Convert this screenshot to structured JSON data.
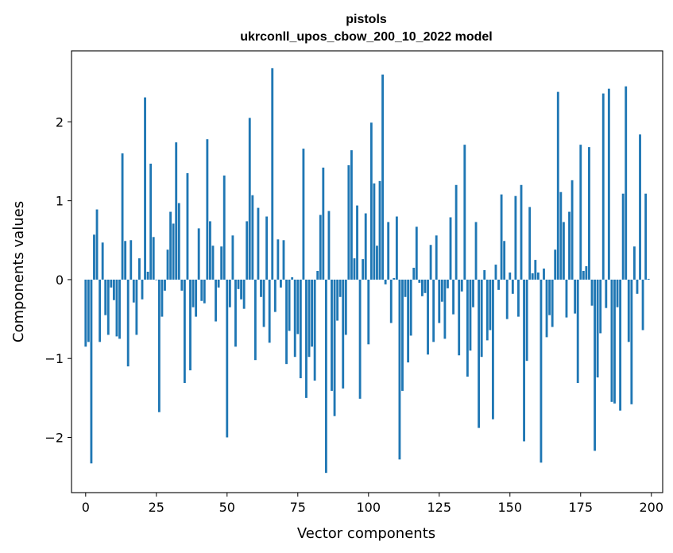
{
  "chart_data": {
    "type": "bar",
    "title": "pistols",
    "subtitle": "ukrconll_upos_cbow_200_10_2022 model",
    "xlabel": "Vector components",
    "ylabel": "Components values",
    "xlim": [
      -5,
      204
    ],
    "ylim": [
      -2.7,
      2.9
    ],
    "xticks": [
      0,
      25,
      50,
      75,
      100,
      125,
      150,
      175,
      200
    ],
    "yticks": [
      -2,
      -1,
      0,
      1,
      2
    ],
    "ytick_labels": [
      "−2",
      "−1",
      "0",
      "1",
      "2"
    ],
    "grid": false,
    "bar_color": "#1f77b4",
    "values": [
      -0.85,
      -0.79,
      -2.33,
      0.57,
      0.89,
      -0.79,
      0.47,
      -0.45,
      -0.7,
      -0.1,
      -0.26,
      -0.72,
      -0.75,
      1.6,
      0.49,
      -1.1,
      0.5,
      -0.29,
      -0.7,
      0.27,
      -0.25,
      2.31,
      0.1,
      1.47,
      0.54,
      0.0,
      -1.68,
      -0.47,
      -0.14,
      0.38,
      0.86,
      0.71,
      1.74,
      0.97,
      -0.14,
      -1.31,
      1.35,
      -1.15,
      -0.35,
      -0.47,
      0.65,
      -0.27,
      -0.3,
      1.78,
      0.74,
      0.43,
      -0.53,
      -0.1,
      0.42,
      1.32,
      -2.0,
      -0.35,
      0.56,
      -0.85,
      -0.12,
      -0.25,
      -0.37,
      0.74,
      2.05,
      1.07,
      -1.02,
      0.91,
      -0.22,
      -0.6,
      0.8,
      -0.8,
      2.68,
      -0.41,
      0.51,
      -0.1,
      0.5,
      -1.07,
      -0.65,
      0.03,
      -0.98,
      -0.69,
      -1.25,
      1.66,
      -1.5,
      -0.98,
      -0.85,
      -1.28,
      0.11,
      0.82,
      1.42,
      -2.45,
      0.87,
      -1.41,
      -1.73,
      -0.52,
      -0.22,
      -1.38,
      -0.7,
      1.45,
      1.64,
      0.27,
      0.94,
      -1.51,
      0.26,
      0.84,
      -0.82,
      1.99,
      1.22,
      0.43,
      1.25,
      2.6,
      -0.06,
      0.73,
      -0.55,
      0.02,
      0.8,
      -2.28,
      -1.41,
      -0.22,
      -1.05,
      -0.71,
      0.15,
      0.67,
      -0.04,
      -0.21,
      -0.17,
      -0.95,
      0.44,
      -0.79,
      0.56,
      -0.55,
      -0.28,
      -0.75,
      -0.11,
      0.79,
      -0.44,
      1.2,
      -0.96,
      -0.15,
      1.71,
      -1.23,
      -0.9,
      -0.35,
      0.73,
      -1.88,
      -0.98,
      0.12,
      -0.77,
      -0.64,
      -1.77,
      0.19,
      -0.13,
      1.08,
      0.49,
      -0.5,
      0.09,
      -0.18,
      1.06,
      -0.47,
      1.2,
      -2.05,
      -1.03,
      0.92,
      0.08,
      0.25,
      0.09,
      -2.32,
      0.14,
      -0.73,
      -0.45,
      -0.6,
      0.38,
      2.38,
      1.11,
      0.73,
      -0.48,
      0.86,
      1.26,
      -0.43,
      -1.31,
      1.71,
      0.11,
      0.17,
      1.68,
      -0.33,
      -2.17,
      -1.24,
      -0.68,
      2.36,
      -0.36,
      2.42,
      -1.55,
      -1.57,
      -0.35,
      -1.66,
      1.09,
      2.45,
      -0.79,
      -1.58,
      0.42,
      -0.18,
      1.84,
      -0.64,
      1.09,
      0.01
    ]
  }
}
